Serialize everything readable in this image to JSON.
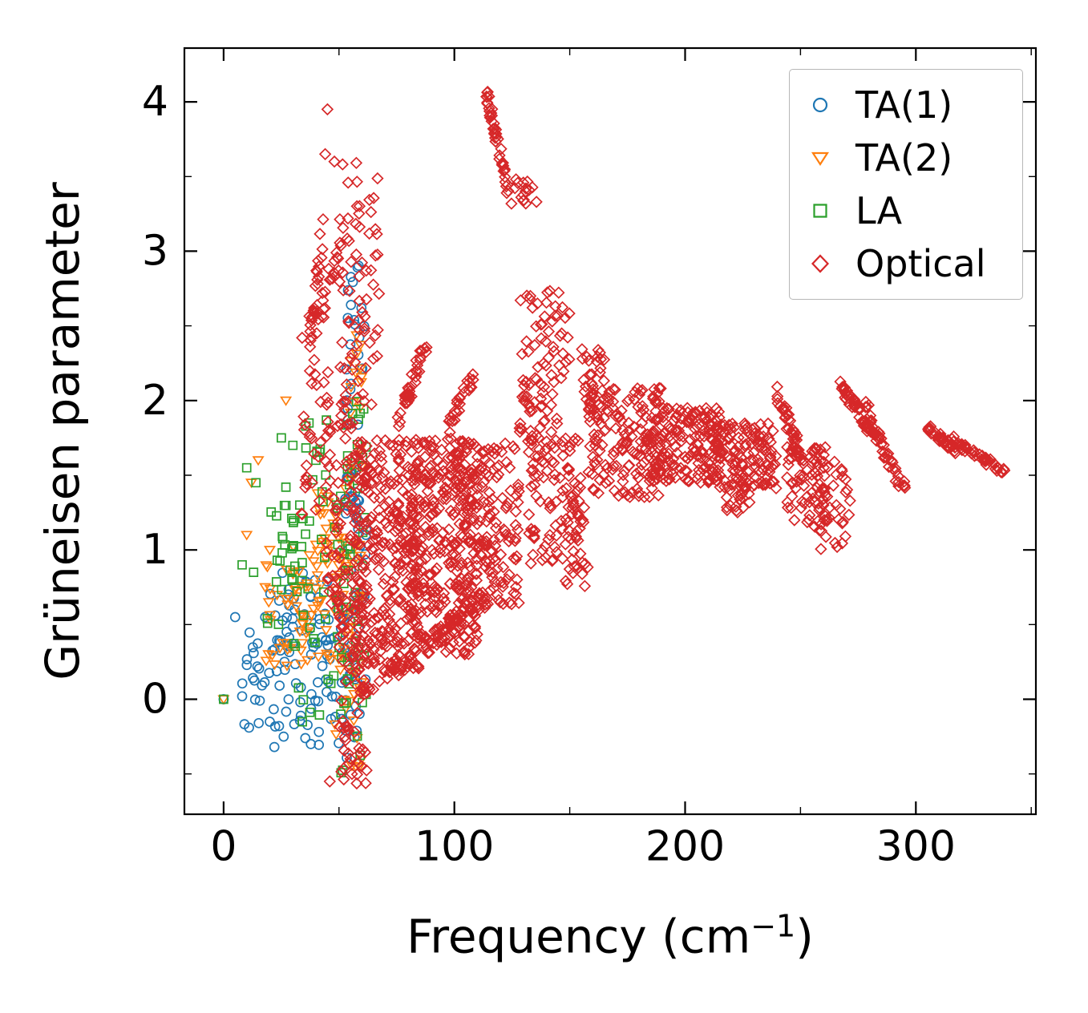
{
  "chart_data": {
    "type": "scatter",
    "title": "",
    "xlabel": "Frequency (cm⁻¹)",
    "xlabel_parts": {
      "prefix": "Frequency (cm",
      "sup": "−1",
      "suffix": ")"
    },
    "ylabel": "Grüneisen parameter",
    "xlim": [
      -17,
      352
    ],
    "ylim": [
      -0.77,
      4.36
    ],
    "xticks": [
      0,
      100,
      200,
      300
    ],
    "xticks_minor": [
      50,
      150,
      250,
      350
    ],
    "yticks": [
      0,
      1,
      2,
      3,
      4
    ],
    "yticks_minor": [
      -0.5,
      0.5,
      1.5,
      2.5,
      3.5
    ],
    "grid": false,
    "legend_position": "upper right",
    "seed": 42,
    "series": [
      {
        "name": "TA(1)",
        "marker": "circle",
        "color": "#1f77b4",
        "points": [
          [
            0,
            0
          ],
          [
            8,
            0.02
          ],
          [
            20,
            -0.15
          ],
          [
            22,
            -0.32
          ],
          [
            18,
            0.55
          ],
          [
            5,
            0.55
          ],
          [
            26,
            -0.25
          ]
        ],
        "clusters": [
          {
            "mode": "blob",
            "x": [
              8,
              35
            ],
            "y": [
              -0.2,
              0.45
            ],
            "n": 40
          },
          {
            "mode": "blob",
            "x": [
              20,
              45
            ],
            "y": [
              0.3,
              0.85
            ],
            "n": 35
          },
          {
            "mode": "blob",
            "x": [
              35,
              55
            ],
            "y": [
              -0.35,
              0.7
            ],
            "n": 45
          },
          {
            "mode": "blob",
            "x": [
              52,
              62
            ],
            "y": [
              -0.4,
              1.6
            ],
            "n": 50
          },
          {
            "mode": "blob",
            "x": [
              53,
              61
            ],
            "y": [
              1.8,
              3.0
            ],
            "n": 25
          }
        ]
      },
      {
        "name": "TA(2)",
        "marker": "triangle-down",
        "color": "#ff7f0e",
        "points": [
          [
            0,
            0
          ],
          [
            27,
            2.0
          ],
          [
            12,
            1.45
          ],
          [
            15,
            1.6
          ],
          [
            20,
            1.0
          ],
          [
            18,
            0.75
          ],
          [
            10,
            1.1
          ]
        ],
        "clusters": [
          {
            "mode": "blob",
            "x": [
              15,
              40
            ],
            "y": [
              0.2,
              0.9
            ],
            "n": 35
          },
          {
            "mode": "blob",
            "x": [
              30,
              52
            ],
            "y": [
              0.25,
              1.1
            ],
            "n": 45
          },
          {
            "mode": "blob",
            "x": [
              35,
              50
            ],
            "y": [
              1.0,
              1.45
            ],
            "n": 12
          },
          {
            "mode": "blob",
            "x": [
              48,
              60
            ],
            "y": [
              -0.45,
              1.8
            ],
            "n": 55
          },
          {
            "mode": "blob",
            "x": [
              54,
              60
            ],
            "y": [
              1.9,
              2.45
            ],
            "n": 12
          }
        ]
      },
      {
        "name": "LA",
        "marker": "square",
        "color": "#2ca02c",
        "points": [
          [
            0,
            0
          ],
          [
            10,
            1.55
          ],
          [
            14,
            1.45
          ],
          [
            25,
            1.75
          ],
          [
            30,
            1.7
          ],
          [
            27,
            1.42
          ],
          [
            33,
            1.3
          ],
          [
            8,
            0.9
          ],
          [
            13,
            0.85
          ],
          [
            37,
            1.85
          ],
          [
            40,
            1.6
          ]
        ],
        "clusters": [
          {
            "mode": "blob",
            "x": [
              18,
              40
            ],
            "y": [
              0.4,
              1.3
            ],
            "n": 25
          },
          {
            "mode": "blob",
            "x": [
              30,
              50
            ],
            "y": [
              -0.2,
              1.25
            ],
            "n": 30
          },
          {
            "mode": "blob",
            "x": [
              35,
              45
            ],
            "y": [
              1.3,
              1.9
            ],
            "n": 10
          },
          {
            "mode": "blob",
            "x": [
              48,
              62
            ],
            "y": [
              -0.55,
              1.4
            ],
            "n": 40
          },
          {
            "mode": "blob",
            "x": [
              52,
              62
            ],
            "y": [
              1.4,
              2.0
            ],
            "n": 15
          }
        ]
      },
      {
        "name": "Optical",
        "marker": "diamond",
        "color": "#d62728",
        "points": [
          [
            45,
            3.95
          ],
          [
            44,
            3.65
          ],
          [
            48,
            3.6
          ],
          [
            34,
            2.42
          ],
          [
            46,
            -0.55
          ]
        ],
        "clusters": [
          {
            "mode": "diag",
            "x": [
              36,
              44
            ],
            "y": [
              2.3,
              3.25
            ],
            "n": 25,
            "jitter": [
              2,
              0.1
            ]
          },
          {
            "mode": "diag",
            "x": [
              40,
              50
            ],
            "y": [
              2.5,
              3.0
            ],
            "n": 25,
            "jitter": [
              3,
              0.15
            ]
          },
          {
            "mode": "blob",
            "x": [
              33,
              46
            ],
            "y": [
              1.2,
              2.3
            ],
            "n": 35
          },
          {
            "mode": "blob",
            "x": [
              50,
              68
            ],
            "y": [
              1.9,
              3.6
            ],
            "n": 70
          },
          {
            "mode": "blob",
            "x": [
              44,
              56
            ],
            "y": [
              0.6,
              1.9
            ],
            "n": 60
          },
          {
            "mode": "blob",
            "x": [
              50,
              62
            ],
            "y": [
              -0.6,
              0.7
            ],
            "n": 70
          },
          {
            "mode": "blob",
            "x": [
              56,
              85
            ],
            "y": [
              0.15,
              1.75
            ],
            "n": 320
          },
          {
            "mode": "blob",
            "x": [
              80,
              110
            ],
            "y": [
              0.3,
              1.75
            ],
            "n": 300
          },
          {
            "mode": "blob",
            "x": [
              100,
              128
            ],
            "y": [
              0.55,
              1.75
            ],
            "n": 180
          },
          {
            "mode": "diag",
            "x": [
              60,
              120
            ],
            "y": [
              0.05,
              0.75
            ],
            "n": 80,
            "jitter": [
              4,
              0.12
            ]
          },
          {
            "mode": "diag",
            "x": [
              76,
              88
            ],
            "y": [
              1.85,
              2.42
            ],
            "n": 35,
            "jitter": [
              2,
              0.1
            ]
          },
          {
            "mode": "diag",
            "x": [
              96,
              108
            ],
            "y": [
              1.8,
              2.15
            ],
            "n": 25,
            "jitter": [
              2,
              0.1
            ]
          },
          {
            "mode": "diag",
            "x": [
              113,
              124
            ],
            "y": [
              4.1,
              3.35
            ],
            "n": 45,
            "jitter": [
              1.5,
              0.08
            ]
          },
          {
            "mode": "blob",
            "x": [
              126,
              136
            ],
            "y": [
              3.3,
              3.5
            ],
            "n": 15
          },
          {
            "mode": "blob",
            "x": [
              128,
              150
            ],
            "y": [
              1.7,
              2.75
            ],
            "n": 90
          },
          {
            "mode": "blob",
            "x": [
              132,
              155
            ],
            "y": [
              0.9,
              1.75
            ],
            "n": 90
          },
          {
            "mode": "blob",
            "x": [
              148,
              158
            ],
            "y": [
              0.75,
              1.3
            ],
            "n": 30
          },
          {
            "mode": "blob",
            "x": [
              155,
              165
            ],
            "y": [
              1.9,
              2.35
            ],
            "n": 30
          },
          {
            "mode": "blob",
            "x": [
              158,
              190
            ],
            "y": [
              1.35,
              2.1
            ],
            "n": 160
          },
          {
            "mode": "blob",
            "x": [
              185,
              215
            ],
            "y": [
              1.45,
              1.95
            ],
            "n": 160
          },
          {
            "mode": "blob",
            "x": [
              210,
              240
            ],
            "y": [
              1.4,
              1.85
            ],
            "n": 140
          },
          {
            "mode": "blob",
            "x": [
              218,
              228
            ],
            "y": [
              1.25,
              1.5
            ],
            "n": 25
          },
          {
            "mode": "diag",
            "x": [
              240,
              252
            ],
            "y": [
              2.05,
              1.55
            ],
            "n": 45,
            "jitter": [
              2,
              0.09
            ]
          },
          {
            "mode": "blob",
            "x": [
              244,
              262
            ],
            "y": [
              1.15,
              1.7
            ],
            "n": 60
          },
          {
            "mode": "blob",
            "x": [
              255,
              272
            ],
            "y": [
              1.0,
              1.6
            ],
            "n": 45
          },
          {
            "mode": "diag",
            "x": [
              268,
              282
            ],
            "y": [
              2.1,
              1.75
            ],
            "n": 45,
            "jitter": [
              2,
              0.08
            ]
          },
          {
            "mode": "diag",
            "x": [
              278,
              295
            ],
            "y": [
              1.95,
              1.4
            ],
            "n": 45,
            "jitter": [
              2,
              0.09
            ]
          },
          {
            "mode": "diag",
            "x": [
              305,
              318
            ],
            "y": [
              1.82,
              1.65
            ],
            "n": 35,
            "jitter": [
              2,
              0.06
            ]
          },
          {
            "mode": "diag",
            "x": [
              315,
              338
            ],
            "y": [
              1.75,
              1.52
            ],
            "n": 45,
            "jitter": [
              2,
              0.05
            ]
          }
        ]
      }
    ]
  }
}
